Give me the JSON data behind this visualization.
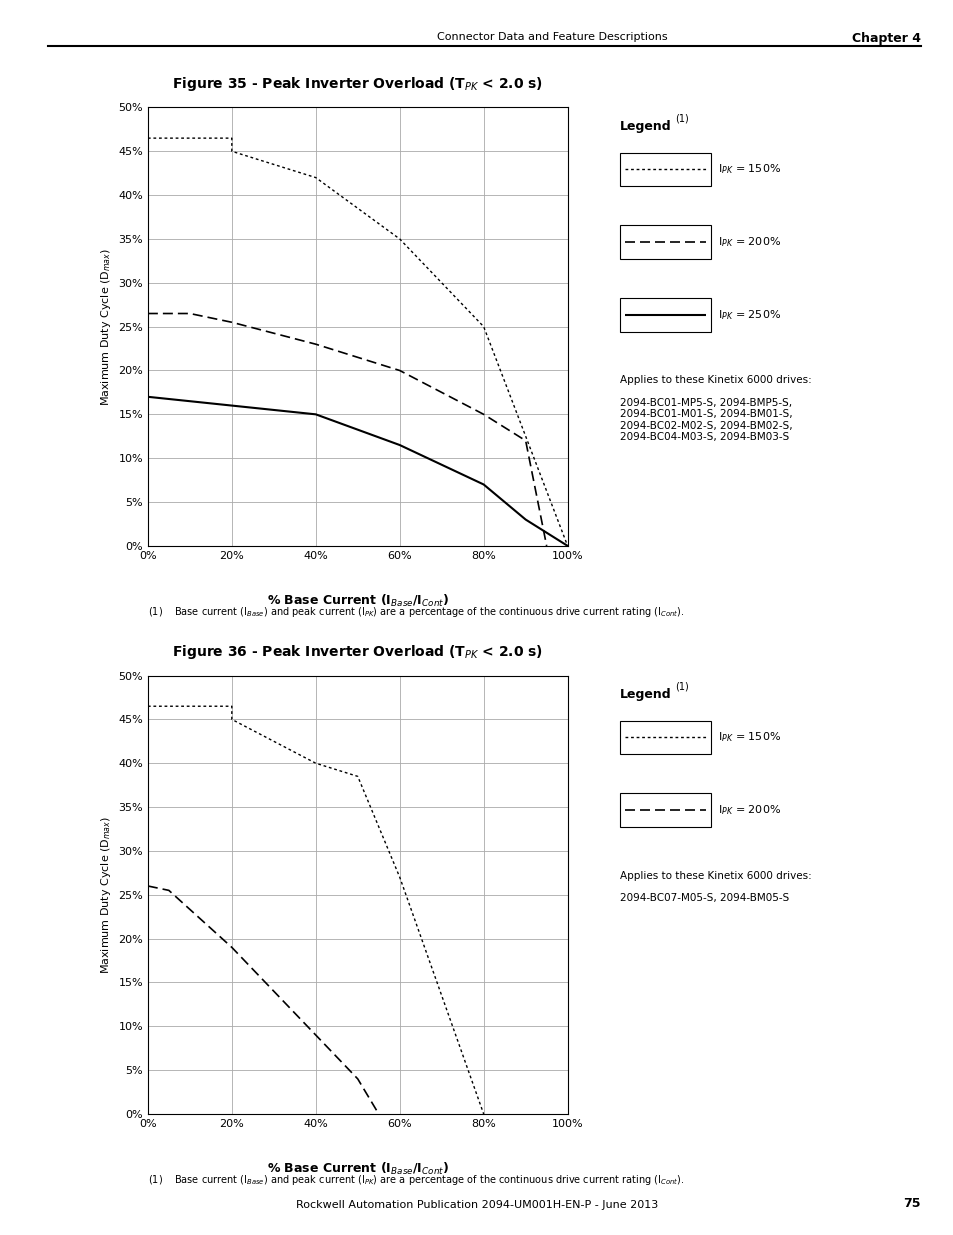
{
  "header_right": "Connector Data and Feature Descriptions",
  "header_chapter": "Chapter 4",
  "footer": "Rockwell Automation Publication 2094-UM001H-EN-P - June 2013",
  "footer_page": "75",
  "fig1_title": "Figure 35 - Peak Inverter Overload (T$_{PK}$ < 2.0 s)",
  "fig2_title": "Figure 36 - Peak Inverter Overload (T$_{PK}$ < 2.0 s)",
  "ylabel": "Maximum Duty Cycle (D$_{max}$)",
  "xlabel": "% Base Current (I$_{Base}$/I$_{Cont}$)",
  "fig1_applies": "Applies to these Kinetix 6000 drives:",
  "fig1_drives": "2094-BC01-MP5-S, 2094-BMP5-S,\n2094-BC01-M01-S, 2094-BM01-S,\n2094-BC02-M02-S, 2094-BM02-S,\n2094-BC04-M03-S, 2094-BM03-S",
  "fig2_applies": "Applies to these Kinetix 6000 drives:",
  "fig2_drives": "2094-BC07-M05-S, 2094-BM05-S",
  "footnote": "(1)    Base current (I$_{Base}$) and peak current (I$_{PK}$) are a percentage of the continuous drive current rating (I$_{Cont}$).",
  "fig1_curve150_x": [
    0,
    20,
    20,
    40,
    60,
    80,
    100
  ],
  "fig1_curve150_y": [
    46.5,
    46.5,
    45.0,
    42.0,
    35.0,
    25.0,
    0.0
  ],
  "fig1_curve200_x": [
    0,
    10,
    20,
    40,
    60,
    80,
    90,
    95
  ],
  "fig1_curve200_y": [
    26.5,
    26.5,
    25.5,
    23.0,
    20.0,
    15.0,
    12.0,
    0.0
  ],
  "fig1_curve250_x": [
    0,
    20,
    40,
    60,
    80,
    90,
    100
  ],
  "fig1_curve250_y": [
    17.0,
    16.0,
    15.0,
    11.5,
    7.0,
    3.0,
    0.0
  ],
  "fig2_curve150_x": [
    0,
    20,
    20,
    40,
    50,
    60,
    80
  ],
  "fig2_curve150_y": [
    46.5,
    46.5,
    45.0,
    40.0,
    38.5,
    27.0,
    0.0
  ],
  "fig2_curve200_x": [
    0,
    5,
    20,
    40,
    50,
    55
  ],
  "fig2_curve200_y": [
    26.0,
    25.5,
    19.0,
    9.0,
    4.0,
    0.0
  ],
  "bg_color": "#ffffff",
  "line_color": "#000000",
  "grid_color": "#aaaaaa"
}
